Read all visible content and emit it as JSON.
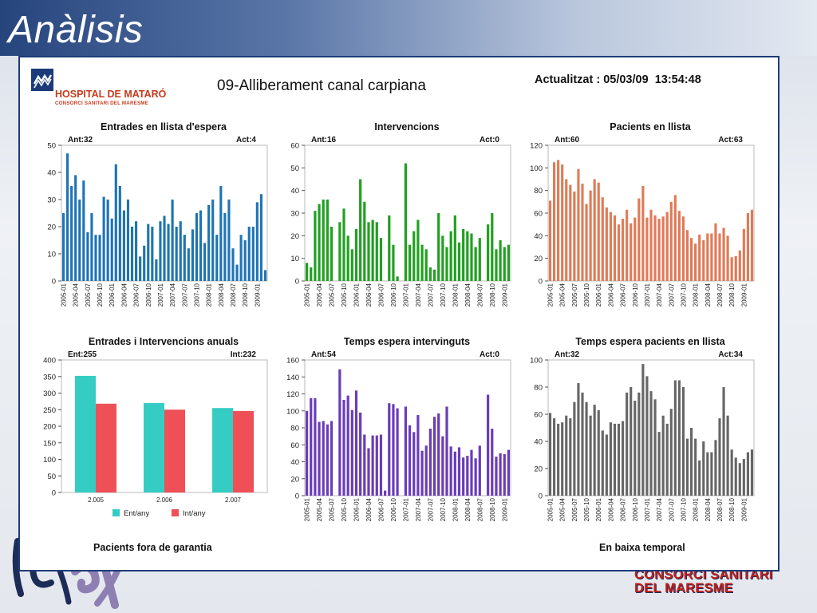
{
  "slide": {
    "title": "Anàlisis",
    "footer_brand_line1": "CONSORCI SANITARI",
    "footer_brand_line2": "DEL MARESME"
  },
  "header": {
    "logo_name": "HOSPITAL DE MATARÓ",
    "logo_sub": "CONSORCI SANITARI DEL MARESME",
    "report_title": "09-Alliberament canal carpiana",
    "updated_label": "Actualitzat : ",
    "updated_date": "05/03/09",
    "updated_time": "13:54:48"
  },
  "footer": {
    "left_label": "Pacients fora de garantia",
    "right_label": "En baixa temporal"
  },
  "colors": {
    "entrades": "#1f74b4",
    "intervencions": "#22a022",
    "pacients": "#e07a57",
    "anual_ent": "#35cdc3",
    "anual_int": "#ef5057",
    "temps_int": "#6a3db8",
    "temps_pac": "#666666"
  },
  "chart_data": [
    {
      "id": "entrades",
      "type": "bar",
      "title": "Entrades en llista d'espera",
      "ant": "Ant:32",
      "act": "Act:4",
      "ylim": [
        0,
        50
      ],
      "yticks": [
        0,
        10,
        20,
        30,
        40,
        50
      ],
      "xtick_labels": [
        "2005-01",
        "2005-04",
        "2005-07",
        "2005-10",
        "2006-01",
        "2006-04",
        "2006-07",
        "2006-10",
        "2007-01",
        "2007-04",
        "2007-07",
        "2007-10",
        "2008-01",
        "2008-04",
        "2008-07",
        "2008-10",
        "2009-01"
      ],
      "values": [
        25,
        47,
        35,
        39,
        30,
        37,
        18,
        25,
        17,
        17,
        31,
        30,
        23,
        43,
        35,
        26,
        30,
        20,
        22,
        9,
        13,
        21,
        20,
        8,
        22,
        24,
        21,
        30,
        20,
        22,
        17,
        12,
        19,
        25,
        26,
        14,
        28,
        30,
        17,
        35,
        25,
        30,
        12,
        6,
        17,
        15,
        20,
        20,
        29,
        32,
        4
      ]
    },
    {
      "id": "intervencions",
      "type": "bar",
      "title": "Intervencions",
      "ant": "Ant:16",
      "act": "Act:0",
      "ylim": [
        0,
        60
      ],
      "yticks": [
        0,
        10,
        20,
        30,
        40,
        50,
        60
      ],
      "xtick_labels": [
        "2005-01",
        "2005-04",
        "2005-07",
        "2005-10",
        "2006-01",
        "2006-04",
        "2006-07",
        "2006-10",
        "2007-01",
        "2007-04",
        "2007-07",
        "2007-10",
        "2008-01",
        "2008-04",
        "2008-07",
        "2008-10",
        "2009-01"
      ],
      "values": [
        8,
        6,
        31,
        34,
        36,
        36,
        24,
        0,
        26,
        32,
        20,
        14,
        23,
        45,
        35,
        26,
        27,
        26,
        19,
        0,
        29,
        16,
        2,
        0,
        52,
        16,
        22,
        27,
        16,
        14,
        6,
        5,
        30,
        20,
        15,
        22,
        29,
        17,
        23,
        22,
        21,
        15,
        19,
        0,
        25,
        30,
        14,
        18,
        15,
        16
      ]
    },
    {
      "id": "pacients",
      "type": "bar",
      "title": "Pacients en llista",
      "ant": "Ant:60",
      "act": "Act:63",
      "ylim": [
        0,
        120
      ],
      "yticks": [
        0,
        20,
        40,
        60,
        80,
        100,
        120
      ],
      "xtick_labels": [
        "2005-01",
        "2005-04",
        "2005-07",
        "2005-10",
        "2006-01",
        "2006-04",
        "2006-07",
        "2006-10",
        "2007-01",
        "2007-04",
        "2007-07",
        "2007-10",
        "2008-01",
        "2008-04",
        "2008-07",
        "2008-10",
        "2009-01"
      ],
      "values": [
        71,
        105,
        107,
        103,
        90,
        85,
        79,
        99,
        86,
        68,
        80,
        90,
        87,
        74,
        65,
        61,
        58,
        50,
        55,
        63,
        51,
        56,
        73,
        84,
        56,
        63,
        58,
        55,
        57,
        61,
        70,
        76,
        62,
        57,
        45,
        38,
        33,
        41,
        36,
        42,
        42,
        51,
        42,
        47,
        40,
        21,
        22,
        27,
        46,
        60,
        63
      ]
    },
    {
      "id": "anuals",
      "type": "bar",
      "title": "Entrades i Intervencions anuals",
      "ant": "Ent:255",
      "act": "Int:232",
      "ylim": [
        0,
        400
      ],
      "yticks": [
        0,
        50,
        100,
        150,
        200,
        250,
        300,
        350,
        400
      ],
      "categories": [
        "2.005",
        "2.006",
        "2.007"
      ],
      "series": [
        {
          "name": "Ent/any",
          "values": [
            352,
            270,
            255
          ]
        },
        {
          "name": "Int/any",
          "values": [
            268,
            250,
            246
          ]
        }
      ]
    },
    {
      "id": "temps_int",
      "type": "bar",
      "title": "Temps espera intervinguts",
      "ant": "Ant:54",
      "act": "Act:0",
      "ylim": [
        0,
        160
      ],
      "yticks": [
        0,
        20,
        40,
        60,
        80,
        100,
        120,
        140,
        160
      ],
      "xtick_labels": [
        "2005-01",
        "2005-04",
        "2005-07",
        "2005-10",
        "2006-01",
        "2006-04",
        "2006-07",
        "2006-10",
        "2007-01",
        "2007-04",
        "2007-07",
        "2007-10",
        "2008-01",
        "2008-04",
        "2008-07",
        "2008-10",
        "2009-01"
      ],
      "values": [
        100,
        115,
        115,
        87,
        88,
        84,
        88,
        0,
        149,
        113,
        118,
        101,
        124,
        98,
        72,
        56,
        71,
        71,
        72,
        6,
        109,
        108,
        103,
        0,
        105,
        83,
        75,
        95,
        53,
        59,
        79,
        93,
        97,
        70,
        105,
        58,
        52,
        57,
        45,
        47,
        54,
        44,
        59,
        0,
        119,
        79,
        46,
        50,
        49,
        54
      ]
    },
    {
      "id": "temps_pac",
      "type": "bar",
      "title": "Temps espera pacients en llista",
      "ant": "Ant:32",
      "act": "Act:34",
      "ylim": [
        0,
        100
      ],
      "yticks": [
        0,
        20,
        40,
        60,
        80,
        100
      ],
      "xtick_labels": [
        "2005-01",
        "2005-04",
        "2005-07",
        "2005-10",
        "2006-01",
        "2006-04",
        "2006-07",
        "2006-10",
        "2007-01",
        "2007-04",
        "2007-07",
        "2007-10",
        "2008-01",
        "2008-04",
        "2008-07",
        "2008-10",
        "2009-01"
      ],
      "values": [
        61,
        57,
        53,
        54,
        59,
        57,
        69,
        83,
        76,
        69,
        59,
        67,
        63,
        48,
        45,
        54,
        53,
        53,
        55,
        76,
        80,
        70,
        76,
        97,
        88,
        77,
        71,
        47,
        59,
        53,
        64,
        85,
        85,
        80,
        42,
        50,
        42,
        26,
        40,
        32,
        32,
        41,
        57,
        80,
        59,
        34,
        28,
        24,
        27,
        32,
        34
      ]
    }
  ]
}
